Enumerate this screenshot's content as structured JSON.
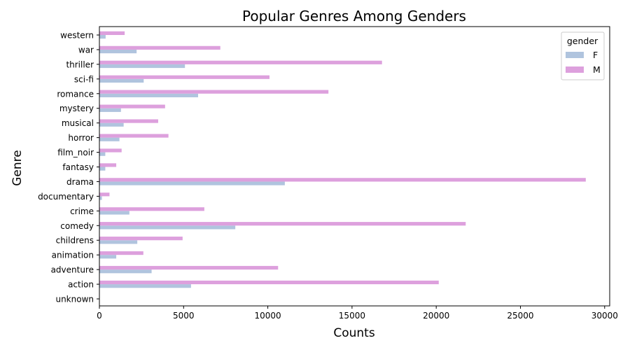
{
  "chart_data": {
    "type": "bar",
    "orientation": "horizontal",
    "title": "Popular Genres Among Genders",
    "xlabel": "Counts",
    "ylabel": "Genre",
    "xlim": [
      0,
      30300
    ],
    "xticks": [
      0,
      5000,
      10000,
      15000,
      20000,
      25000,
      30000
    ],
    "grid": false,
    "legend": {
      "title": "gender",
      "placement": "top-right"
    },
    "categories": [
      "unknown",
      "action",
      "adventure",
      "animation",
      "childrens",
      "comedy",
      "crime",
      "documentary",
      "drama",
      "fantasy",
      "film_noir",
      "horror",
      "musical",
      "mystery",
      "romance",
      "sci-fi",
      "thriller",
      "war",
      "western"
    ],
    "series": [
      {
        "name": "F",
        "color": "#b0c4de",
        "values": [
          10,
          5440,
          3100,
          1000,
          2250,
          8070,
          1780,
          150,
          11010,
          350,
          350,
          1190,
          1440,
          1280,
          5860,
          2630,
          5080,
          2210,
          370
        ]
      },
      {
        "name": "M",
        "color": "#dda0dd",
        "values": [
          10,
          20150,
          10610,
          2610,
          4940,
          21750,
          6230,
          600,
          28880,
          1000,
          1320,
          4100,
          3490,
          3900,
          13600,
          10100,
          16780,
          7180,
          1500
        ]
      }
    ]
  }
}
